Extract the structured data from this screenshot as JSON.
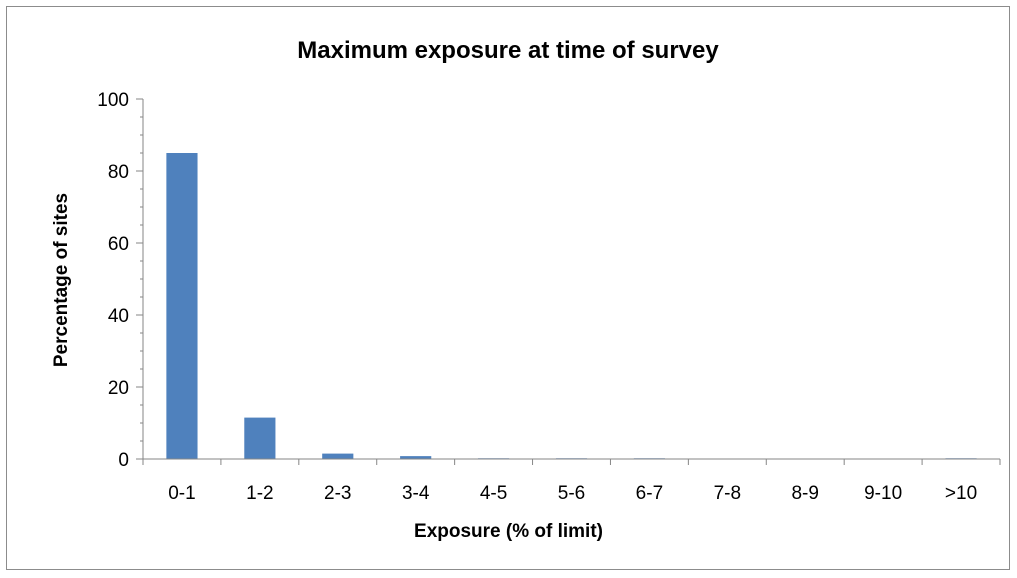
{
  "chart_data": {
    "type": "bar",
    "title": "Maximum exposure at time of survey",
    "xlabel": "Exposure (% of limit)",
    "ylabel": "Percentage of sites",
    "categories": [
      "0-1",
      "1-2",
      "2-3",
      "3-4",
      "4-5",
      "5-6",
      "6-7",
      "7-8",
      "8-9",
      "9-10",
      ">10"
    ],
    "values": [
      85,
      11.5,
      1.5,
      0.8,
      0.2,
      0.2,
      0.2,
      0,
      0,
      0,
      0.2
    ],
    "ylim": [
      0,
      100
    ],
    "yticks": [
      0,
      20,
      40,
      60,
      80,
      100
    ],
    "grid": false,
    "legend": "none",
    "bar_color": "#4f81bd",
    "axis_color": "#868686"
  }
}
